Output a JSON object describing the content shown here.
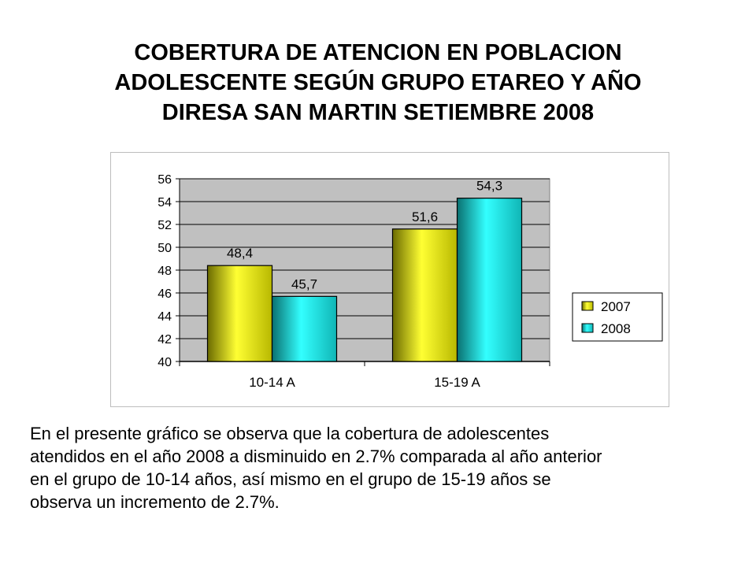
{
  "title_lines": [
    "COBERTURA DE ATENCION EN POBLACION",
    "ADOLESCENTE SEGÚN GRUPO ETAREO Y AÑO",
    "DIRESA SAN MARTIN SETIEMBRE 2008"
  ],
  "chart_data": {
    "type": "bar",
    "categories": [
      "10-14 A",
      "15-19 A"
    ],
    "series": [
      {
        "name": "2007",
        "values": [
          48.4,
          51.6
        ],
        "labels": [
          "48,4",
          "51,6"
        ],
        "color": "#e6e600"
      },
      {
        "name": "2008",
        "values": [
          45.7,
          54.3
        ],
        "labels": [
          "45,7",
          "54,3"
        ],
        "color": "#19d4d4"
      }
    ],
    "ylim": [
      40,
      56
    ],
    "yticks": [
      "40",
      "42",
      "44",
      "46",
      "48",
      "50",
      "52",
      "54",
      "56"
    ],
    "grid": true,
    "legend_position": "right",
    "plot_background": "#c0c0c0"
  },
  "caption_lines": [
    "En el presente  gráfico se observa  que la cobertura de adolescentes",
    "atendidos en el año 2008 a disminuido en 2.7% comparada al año anterior",
    "en el grupo de  10-14 años, así mismo en el grupo de 15-19 años se",
    "observa un incremento de 2.7%."
  ]
}
